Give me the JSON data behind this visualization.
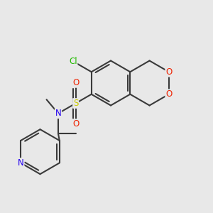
{
  "bg": "#e8e8e8",
  "bond_color": "#3a3a3a",
  "lw": 1.5,
  "cl_color": "#22bb00",
  "o_color": "#ee2200",
  "s_color": "#cccc00",
  "n_color": "#2200ee",
  "fs": 8.5,
  "xlim": [
    -4.5,
    5.5
  ],
  "ylim": [
    -5.0,
    4.5
  ]
}
